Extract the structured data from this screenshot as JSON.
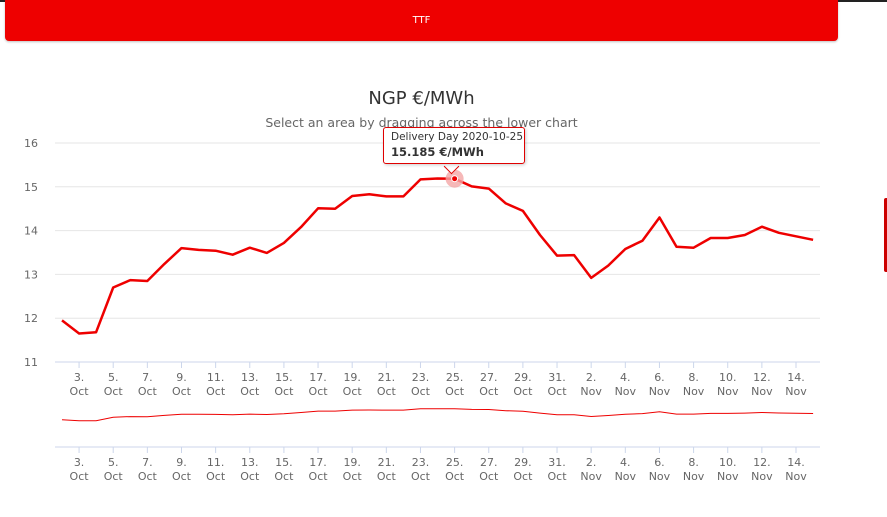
{
  "header": {
    "button_label": "TTF"
  },
  "chart_data": {
    "type": "line",
    "title": "NGP €/MWh",
    "subtitle": "Select an area by dragging across the lower chart",
    "xlabel": "",
    "ylabel": "",
    "ylim": [
      11,
      16
    ],
    "yticks": [
      11,
      12,
      13,
      14,
      15,
      16
    ],
    "grid": true,
    "x_start": "2020-10-02",
    "x": [
      "2020-10-02",
      "2020-10-03",
      "2020-10-04",
      "2020-10-05",
      "2020-10-06",
      "2020-10-07",
      "2020-10-08",
      "2020-10-09",
      "2020-10-10",
      "2020-10-11",
      "2020-10-12",
      "2020-10-13",
      "2020-10-14",
      "2020-10-15",
      "2020-10-16",
      "2020-10-17",
      "2020-10-18",
      "2020-10-19",
      "2020-10-20",
      "2020-10-21",
      "2020-10-22",
      "2020-10-23",
      "2020-10-24",
      "2020-10-25",
      "2020-10-26",
      "2020-10-27",
      "2020-10-28",
      "2020-10-29",
      "2020-10-30",
      "2020-10-31",
      "2020-11-01",
      "2020-11-02",
      "2020-11-03",
      "2020-11-04",
      "2020-11-05",
      "2020-11-06",
      "2020-11-07",
      "2020-11-08",
      "2020-11-09",
      "2020-11-10",
      "2020-11-11",
      "2020-11-12",
      "2020-11-13",
      "2020-11-14",
      "2020-11-15"
    ],
    "series": [
      {
        "values": [
          11.95,
          11.65,
          11.68,
          12.7,
          12.87,
          12.85,
          13.24,
          13.6,
          13.56,
          13.54,
          13.45,
          13.61,
          13.49,
          13.72,
          14.08,
          14.51,
          14.5,
          14.79,
          14.83,
          14.78,
          14.78,
          15.17,
          15.19,
          15.185,
          15.01,
          14.96,
          14.62,
          14.45,
          13.9,
          13.43,
          13.44,
          12.92,
          13.2,
          13.58,
          13.77,
          14.3,
          13.63,
          13.61,
          13.83,
          13.83,
          13.9,
          14.09,
          13.95,
          13.87,
          13.79
        ],
        "color": "#ee0000"
      }
    ],
    "x_tick_labels": [
      {
        "day": "3.",
        "month": "Oct",
        "date": "2020-10-03"
      },
      {
        "day": "5.",
        "month": "Oct",
        "date": "2020-10-05"
      },
      {
        "day": "7.",
        "month": "Oct",
        "date": "2020-10-07"
      },
      {
        "day": "9.",
        "month": "Oct",
        "date": "2020-10-09"
      },
      {
        "day": "11.",
        "month": "Oct",
        "date": "2020-10-11"
      },
      {
        "day": "13.",
        "month": "Oct",
        "date": "2020-10-13"
      },
      {
        "day": "15.",
        "month": "Oct",
        "date": "2020-10-15"
      },
      {
        "day": "17.",
        "month": "Oct",
        "date": "2020-10-17"
      },
      {
        "day": "19.",
        "month": "Oct",
        "date": "2020-10-19"
      },
      {
        "day": "21.",
        "month": "Oct",
        "date": "2020-10-21"
      },
      {
        "day": "23.",
        "month": "Oct",
        "date": "2020-10-23"
      },
      {
        "day": "25.",
        "month": "Oct",
        "date": "2020-10-25"
      },
      {
        "day": "27.",
        "month": "Oct",
        "date": "2020-10-27"
      },
      {
        "day": "29.",
        "month": "Oct",
        "date": "2020-10-29"
      },
      {
        "day": "31.",
        "month": "Oct",
        "date": "2020-10-31"
      },
      {
        "day": "2.",
        "month": "Nov",
        "date": "2020-11-02"
      },
      {
        "day": "4.",
        "month": "Nov",
        "date": "2020-11-04"
      },
      {
        "day": "6.",
        "month": "Nov",
        "date": "2020-11-06"
      },
      {
        "day": "8.",
        "month": "Nov",
        "date": "2020-11-08"
      },
      {
        "day": "10.",
        "month": "Nov",
        "date": "2020-11-10"
      },
      {
        "day": "12.",
        "month": "Nov",
        "date": "2020-11-12"
      },
      {
        "day": "14.",
        "month": "Nov",
        "date": "2020-11-14"
      }
    ],
    "tooltip": {
      "label": "Delivery Day 2020-10-25",
      "value": "15.185 €/MWh",
      "date": "2020-10-25"
    },
    "highlight_color": "#f4a6a6"
  }
}
